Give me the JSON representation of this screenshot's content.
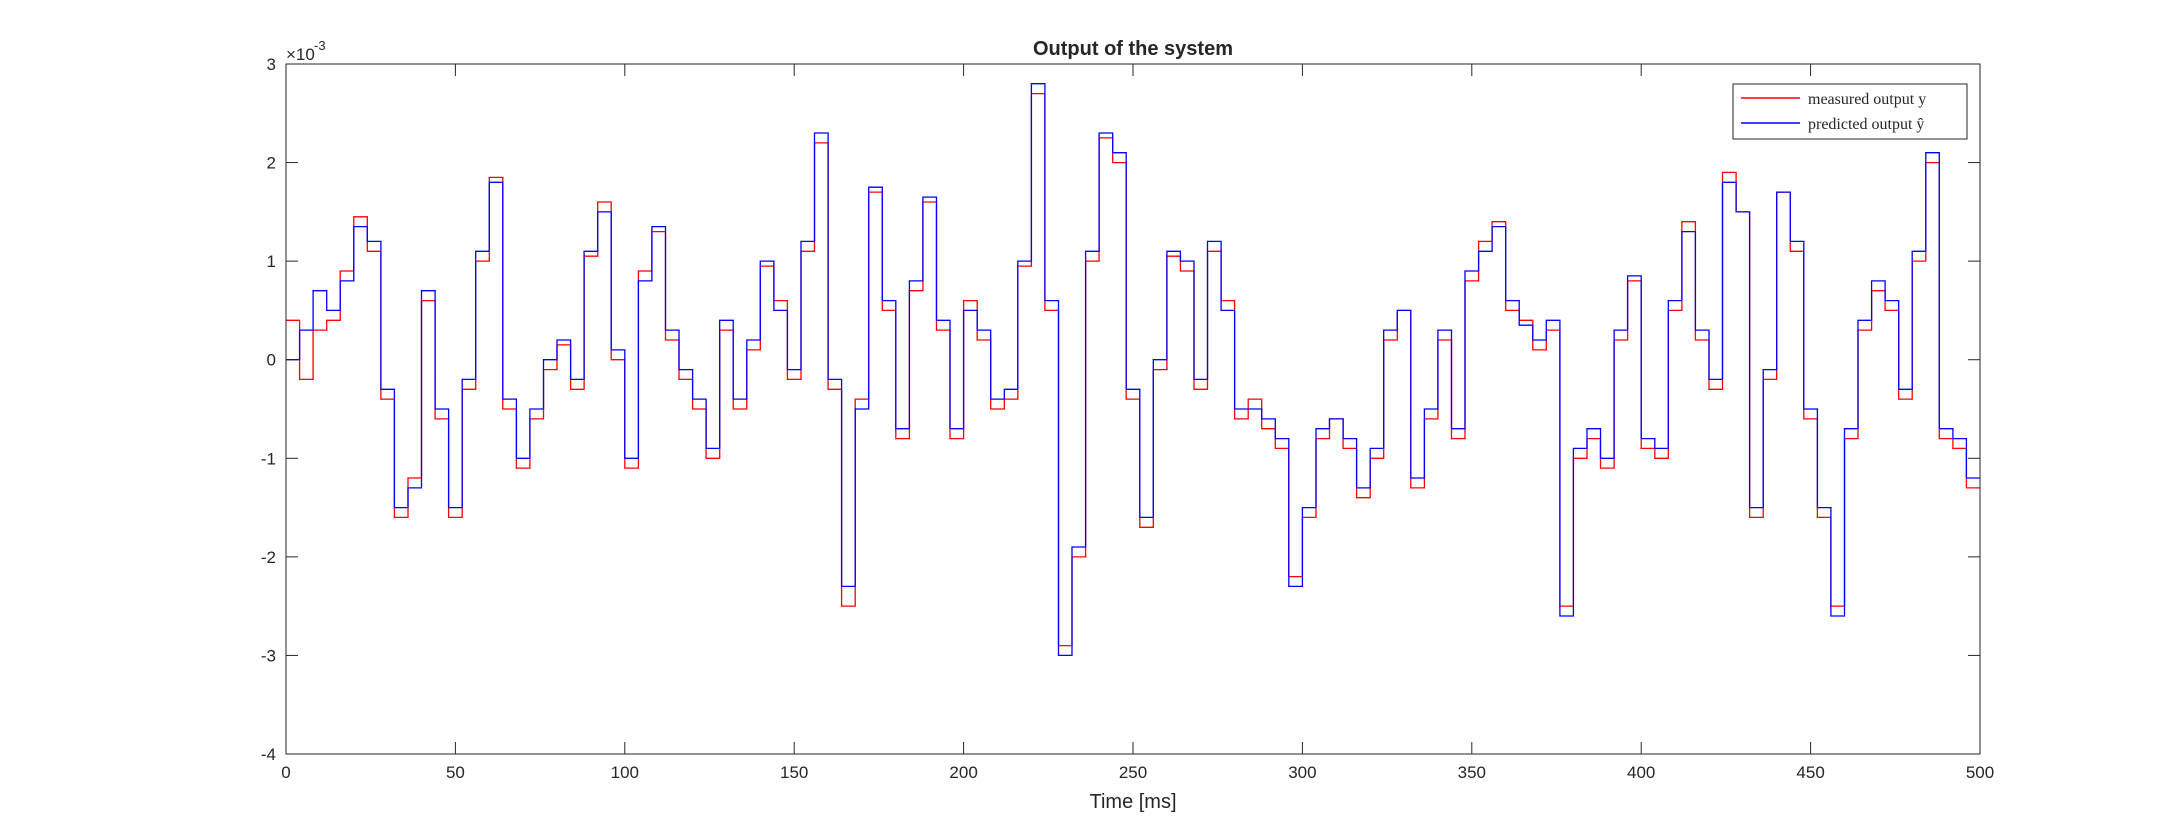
{
  "chart_data": {
    "type": "line",
    "title": "Output of the system",
    "xlabel": "Time [ms]",
    "ylabel": "",
    "xlim": [
      0,
      500
    ],
    "ylim": [
      -4,
      3
    ],
    "y_exponent_label": "×10",
    "y_exponent_power": "-3",
    "xticks": [
      0,
      50,
      100,
      150,
      200,
      250,
      300,
      350,
      400,
      450,
      500
    ],
    "yticks": [
      -4,
      -3,
      -2,
      -1,
      0,
      1,
      2,
      3
    ],
    "xtick_labels": [
      "0",
      "50",
      "100",
      "150",
      "200",
      "250",
      "300",
      "350",
      "400",
      "450",
      "500"
    ],
    "ytick_labels": [
      "-4",
      "-3",
      "-2",
      "-1",
      "0",
      "1",
      "2",
      "3"
    ],
    "grid": false,
    "legend_position": "top-right",
    "step": true,
    "series": [
      {
        "name": "measured output y",
        "color": "#ff0000",
        "x": [
          0,
          4,
          8,
          12,
          16,
          20,
          24,
          28,
          32,
          36,
          40,
          44,
          48,
          52,
          56,
          60,
          64,
          68,
          72,
          76,
          80,
          84,
          88,
          92,
          96,
          100,
          104,
          108,
          112,
          116,
          120,
          124,
          128,
          132,
          136,
          140,
          144,
          148,
          152,
          156,
          160,
          164,
          168,
          172,
          176,
          180,
          184,
          188,
          192,
          196,
          200,
          204,
          208,
          212,
          216,
          220,
          224,
          228,
          232,
          236,
          240,
          244,
          248,
          252,
          256,
          260,
          264,
          268,
          272,
          276,
          280,
          284,
          288,
          292,
          296,
          300,
          304,
          308,
          312,
          316,
          320,
          324,
          328,
          332,
          336,
          340,
          344,
          348,
          352,
          356,
          360,
          364,
          368,
          372,
          376,
          380,
          384,
          388,
          392,
          396,
          400,
          404,
          408,
          412,
          416,
          420,
          424,
          428,
          432,
          436,
          440,
          444,
          448,
          452,
          456,
          460,
          464,
          468,
          472,
          476,
          480,
          484,
          488,
          492,
          496,
          500
        ],
        "y": [
          0.4,
          -0.2,
          0.3,
          0.4,
          0.9,
          1.45,
          1.1,
          -0.4,
          -1.6,
          -1.2,
          0.6,
          -0.6,
          -1.6,
          -0.3,
          1.0,
          1.85,
          -0.5,
          -1.1,
          -0.6,
          -0.1,
          0.15,
          -0.3,
          1.05,
          1.6,
          0.0,
          -1.1,
          0.9,
          1.3,
          0.2,
          -0.2,
          -0.5,
          -1.0,
          0.3,
          -0.5,
          0.1,
          0.95,
          0.6,
          -0.2,
          1.1,
          2.2,
          -0.3,
          -2.5,
          -0.4,
          1.7,
          0.5,
          -0.8,
          0.7,
          1.6,
          0.3,
          -0.8,
          0.6,
          0.2,
          -0.5,
          -0.4,
          0.95,
          2.7,
          0.5,
          -2.9,
          -2.0,
          1.0,
          2.25,
          2.0,
          -0.4,
          -1.7,
          -0.1,
          1.05,
          0.9,
          -0.3,
          1.1,
          0.6,
          -0.6,
          -0.4,
          -0.7,
          -0.9,
          -2.2,
          -1.6,
          -0.8,
          -0.6,
          -0.9,
          -1.4,
          -1.0,
          0.2,
          0.5,
          -1.3,
          -0.6,
          0.2,
          -0.8,
          0.8,
          1.2,
          1.4,
          0.5,
          0.4,
          0.1,
          0.3,
          -2.5,
          -1.0,
          -0.8,
          -1.1,
          0.2,
          0.8,
          -0.9,
          -1.0,
          0.5,
          1.4,
          0.2,
          -0.3,
          1.9,
          1.5,
          -1.6,
          -0.2,
          1.7,
          1.1,
          -0.6,
          -1.6,
          -2.5,
          -0.8,
          0.3,
          0.7,
          0.5,
          -0.4,
          1.0,
          2.0,
          -0.8,
          -0.9,
          -1.3,
          -1.3
        ]
      },
      {
        "name": "predicted output ŷ",
        "color": "#0000ff",
        "x": [
          0,
          4,
          8,
          12,
          16,
          20,
          24,
          28,
          32,
          36,
          40,
          44,
          48,
          52,
          56,
          60,
          64,
          68,
          72,
          76,
          80,
          84,
          88,
          92,
          96,
          100,
          104,
          108,
          112,
          116,
          120,
          124,
          128,
          132,
          136,
          140,
          144,
          148,
          152,
          156,
          160,
          164,
          168,
          172,
          176,
          180,
          184,
          188,
          192,
          196,
          200,
          204,
          208,
          212,
          216,
          220,
          224,
          228,
          232,
          236,
          240,
          244,
          248,
          252,
          256,
          260,
          264,
          268,
          272,
          276,
          280,
          284,
          288,
          292,
          296,
          300,
          304,
          308,
          312,
          316,
          320,
          324,
          328,
          332,
          336,
          340,
          344,
          348,
          352,
          356,
          360,
          364,
          368,
          372,
          376,
          380,
          384,
          388,
          392,
          396,
          400,
          404,
          408,
          412,
          416,
          420,
          424,
          428,
          432,
          436,
          440,
          444,
          448,
          452,
          456,
          460,
          464,
          468,
          472,
          476,
          480,
          484,
          488,
          492,
          496,
          500
        ],
        "y": [
          0.0,
          0.3,
          0.7,
          0.5,
          0.8,
          1.35,
          1.2,
          -0.3,
          -1.5,
          -1.3,
          0.7,
          -0.5,
          -1.5,
          -0.2,
          1.1,
          1.8,
          -0.4,
          -1.0,
          -0.5,
          0.0,
          0.2,
          -0.2,
          1.1,
          1.5,
          0.1,
          -1.0,
          0.8,
          1.35,
          0.3,
          -0.1,
          -0.4,
          -0.9,
          0.4,
          -0.4,
          0.2,
          1.0,
          0.5,
          -0.1,
          1.2,
          2.3,
          -0.2,
          -2.3,
          -0.5,
          1.75,
          0.6,
          -0.7,
          0.8,
          1.65,
          0.4,
          -0.7,
          0.5,
          0.3,
          -0.4,
          -0.3,
          1.0,
          2.8,
          0.6,
          -3.0,
          -1.9,
          1.1,
          2.3,
          2.1,
          -0.3,
          -1.6,
          0.0,
          1.1,
          1.0,
          -0.2,
          1.2,
          0.5,
          -0.5,
          -0.5,
          -0.6,
          -0.8,
          -2.3,
          -1.5,
          -0.7,
          -0.6,
          -0.8,
          -1.3,
          -0.9,
          0.3,
          0.5,
          -1.2,
          -0.5,
          0.3,
          -0.7,
          0.9,
          1.1,
          1.35,
          0.6,
          0.35,
          0.2,
          0.4,
          -2.6,
          -0.9,
          -0.7,
          -1.0,
          0.3,
          0.85,
          -0.8,
          -0.9,
          0.6,
          1.3,
          0.3,
          -0.2,
          1.8,
          1.5,
          -1.5,
          -0.1,
          1.7,
          1.2,
          -0.5,
          -1.5,
          -2.6,
          -0.7,
          0.4,
          0.8,
          0.6,
          -0.3,
          1.1,
          2.1,
          -0.7,
          -0.8,
          -1.2,
          -1.2
        ]
      }
    ]
  }
}
